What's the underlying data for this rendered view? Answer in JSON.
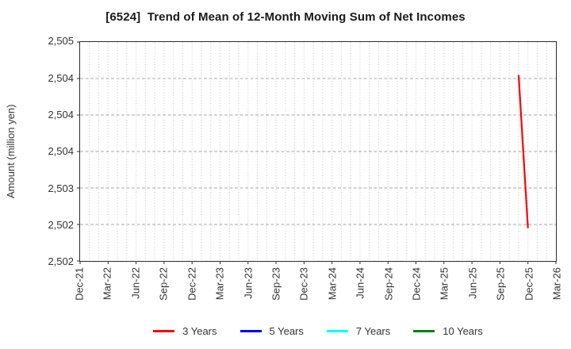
{
  "title": "[6524]  Trend of Mean of 12-Month Moving Sum of Net Incomes",
  "y_axis": {
    "label": "Amount (million yen)",
    "tick_labels": [
      "2,505",
      "2,504",
      "2,504",
      "2,504",
      "2,503",
      "2,502",
      "2,502"
    ]
  },
  "x_axis": {
    "tick_labels": [
      "Dec-21",
      "Mar-22",
      "Jun-22",
      "Sep-22",
      "Dec-22",
      "Mar-23",
      "Jun-23",
      "Sep-23",
      "Dec-23",
      "Mar-24",
      "Jun-24",
      "Sep-24",
      "Dec-24",
      "Mar-25",
      "Jun-25",
      "Sep-25",
      "Dec-25",
      "Mar-26"
    ]
  },
  "legend": [
    {
      "label": "3 Years",
      "color": "#ff0000"
    },
    {
      "label": "5 Years",
      "color": "#0000ff"
    },
    {
      "label": "7 Years",
      "color": "#00ffff"
    },
    {
      "label": "10 Years",
      "color": "#008000"
    }
  ],
  "chart_data": {
    "type": "line",
    "title": "[6524]  Trend of Mean of 12-Month Moving Sum of Net Incomes",
    "xlabel": "",
    "ylabel": "Amount (million yen)",
    "ylim": [
      2502,
      2505
    ],
    "ytick_step": 0.5,
    "x_range": [
      "Dec-21",
      "Mar-26"
    ],
    "x_total_months": 51,
    "x_tick_interval_months": 3,
    "grid": true,
    "legend_position": "bottom",
    "series": [
      {
        "name": "3 Years",
        "color": "#ff0000",
        "points": [
          {
            "x": "Nov-25",
            "month_index": 47,
            "y": 2504.55
          },
          {
            "x": "Dec-25",
            "month_index": 48,
            "y": 2502.45
          }
        ]
      },
      {
        "name": "5 Years",
        "color": "#0000ff",
        "points": []
      },
      {
        "name": "7 Years",
        "color": "#00ffff",
        "points": []
      },
      {
        "name": "10 Years",
        "color": "#008000",
        "points": []
      }
    ]
  }
}
